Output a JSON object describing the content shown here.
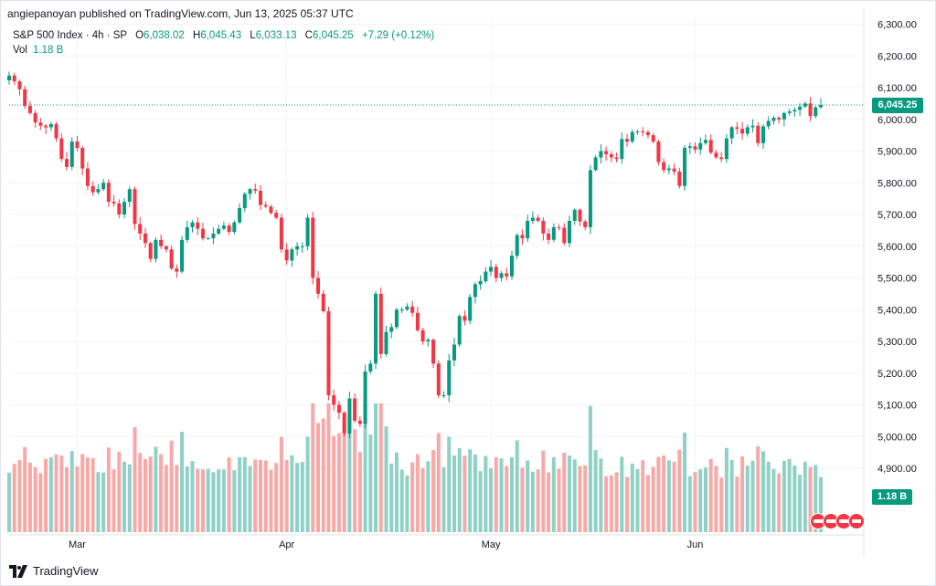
{
  "header": "angiepanoyan published on TradingView.com, Jun 13, 2025 05:37 UTC",
  "legend": {
    "symbol": "S&P 500 Index · 4h · SP",
    "open_label": "O",
    "open": "6,038.02",
    "high_label": "H",
    "high": "6,045.43",
    "low_label": "L",
    "low": "6,033.13",
    "close_label": "C",
    "close": "6,045.25",
    "change": "+7.29 (+0.12%)"
  },
  "volume_legend": {
    "label": "Vol",
    "value": "1.18 B"
  },
  "last_price_tag": "6,045.25",
  "volume_tag": "1.18 B",
  "footer": {
    "brand": "TradingView"
  },
  "colors": {
    "up": "#089981",
    "down": "#f23645",
    "up_volume": "#8fd1c6",
    "down_volume": "#f7a9a7",
    "grid": "#f0f3fa"
  },
  "chart_data": {
    "type": "candlestick",
    "y_axis_ticks": [
      6300,
      6200,
      6100,
      6000,
      5900,
      5800,
      5700,
      5600,
      5500,
      5400,
      5300,
      5200,
      5100,
      5000,
      4900
    ],
    "y_axis_labels": [
      "6,300.00",
      "6,200.00",
      "6,100.00",
      "6,000.00",
      "5,900.00",
      "5,800.00",
      "5,700.00",
      "5,600.00",
      "5,500.00",
      "5,400.00",
      "5,300.00",
      "5,200.00",
      "5,100.00",
      "5,000.00",
      "4,900.00"
    ],
    "ylim": [
      4800,
      6330
    ],
    "x_axis_labels": [
      {
        "label": "Mar",
        "index": 13
      },
      {
        "label": "Apr",
        "index": 53
      },
      {
        "label": "May",
        "index": 92
      },
      {
        "label": "Jun",
        "index": 131
      }
    ],
    "last_close": 6045.25,
    "close": [
      6138,
      6120,
      6095,
      6042,
      6020,
      5990,
      5980,
      5975,
      5985,
      5940,
      5875,
      5850,
      5930,
      5910,
      5845,
      5790,
      5770,
      5780,
      5800,
      5740,
      5735,
      5700,
      5740,
      5780,
      5670,
      5640,
      5610,
      5560,
      5620,
      5600,
      5590,
      5530,
      5520,
      5620,
      5660,
      5675,
      5655,
      5625,
      5625,
      5640,
      5655,
      5665,
      5645,
      5675,
      5720,
      5765,
      5780,
      5775,
      5730,
      5725,
      5705,
      5690,
      5590,
      5555,
      5590,
      5600,
      5600,
      5690,
      5500,
      5450,
      5395,
      5130,
      5100,
      5075,
      5010,
      5120,
      5050,
      5040,
      5205,
      5230,
      5450,
      5260,
      5330,
      5345,
      5400,
      5400,
      5410,
      5390,
      5335,
      5300,
      5305,
      5230,
      5130,
      5130,
      5240,
      5290,
      5380,
      5365,
      5440,
      5480,
      5490,
      5520,
      5535,
      5500,
      5515,
      5505,
      5570,
      5635,
      5625,
      5680,
      5690,
      5680,
      5640,
      5620,
      5660,
      5658,
      5610,
      5680,
      5715,
      5678,
      5660,
      5840,
      5880,
      5900,
      5890,
      5880,
      5875,
      5938,
      5930,
      5960,
      5962,
      5960,
      5950,
      5930,
      5865,
      5840,
      5845,
      5835,
      5790,
      5910,
      5915,
      5905,
      5925,
      5935,
      5895,
      5880,
      5875,
      5940,
      5975,
      5970,
      5955,
      5975,
      5980,
      5925,
      5978,
      5995,
      6005,
      6000,
      6020,
      6025,
      6030,
      6040,
      6050,
      6010,
      6038,
      6045.25
    ],
    "volume_max": 1.6
  }
}
